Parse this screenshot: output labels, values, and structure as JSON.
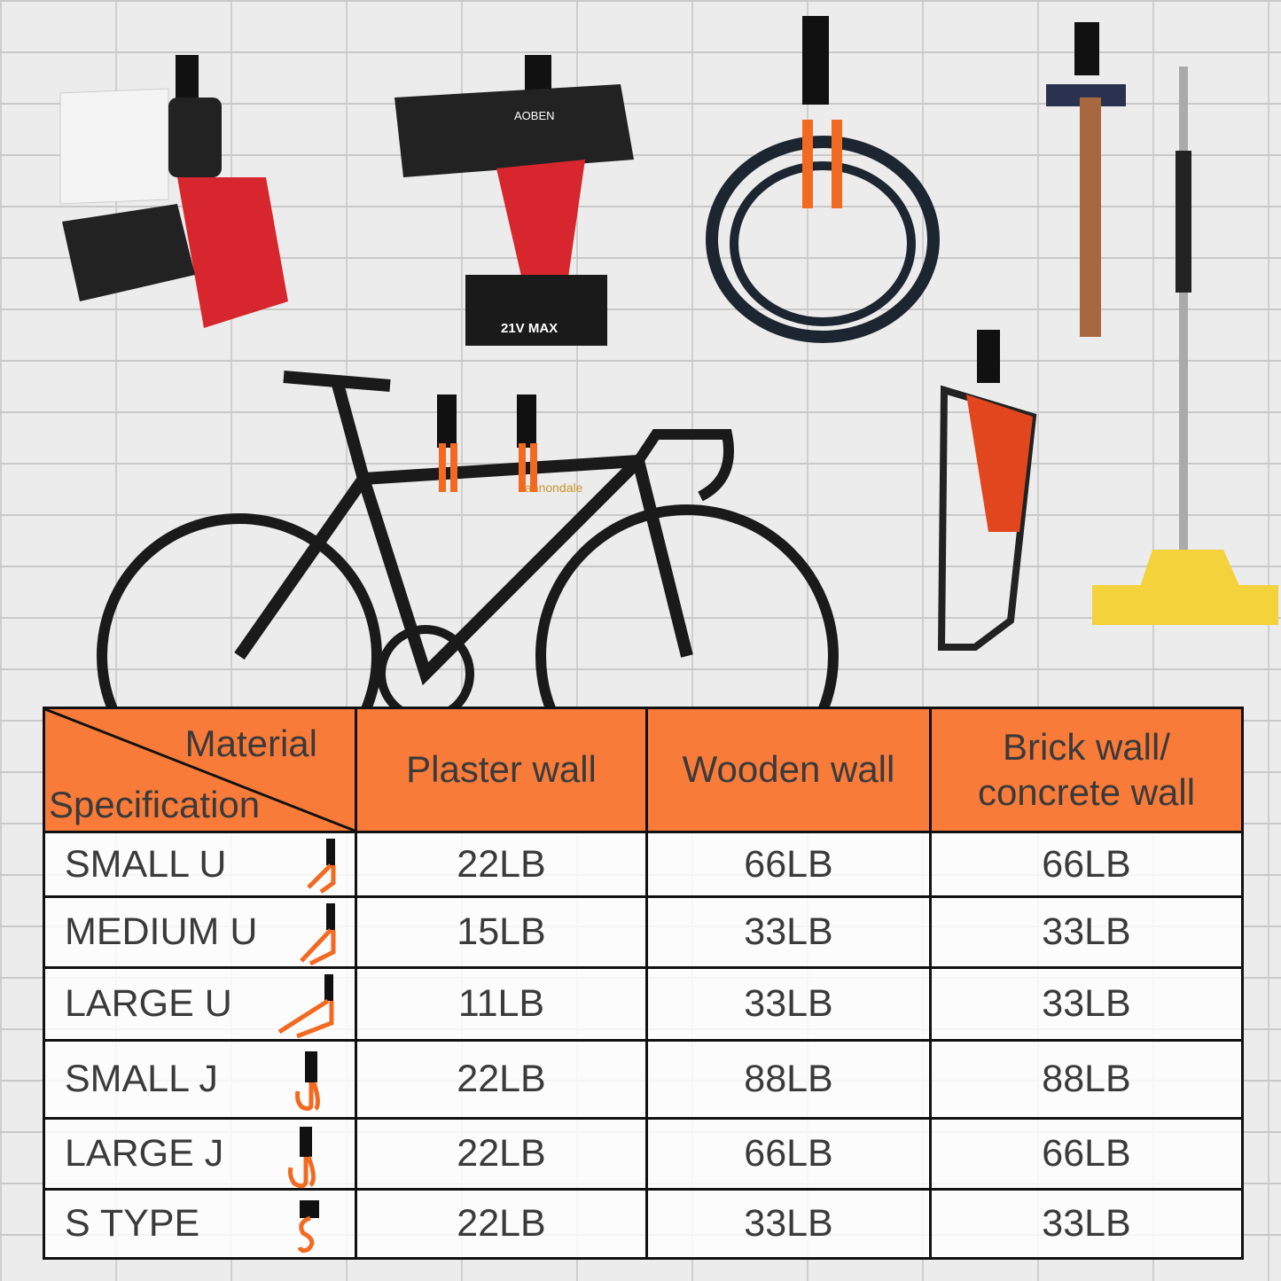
{
  "colors": {
    "header": "#f87b3a",
    "text": "#3a3a3a",
    "border": "#111111",
    "hook": "#f26a21"
  },
  "scene": {
    "drill_brand": "AOBEN",
    "battery_label": "21V MAX",
    "bike_brand": "cannondale"
  },
  "table": {
    "corner": {
      "top": "Material",
      "bottom": "Specification"
    },
    "columns": [
      "Plaster wall",
      "Wooden wall",
      "Brick wall/ concrete wall"
    ],
    "rows": [
      {
        "spec": "SMALL U",
        "hook_icon": "small-u-hook",
        "values": [
          "22LB",
          "66LB",
          "66LB"
        ]
      },
      {
        "spec": "MEDIUM U",
        "hook_icon": "medium-u-hook",
        "values": [
          "15LB",
          "33LB",
          "33LB"
        ]
      },
      {
        "spec": "LARGE U",
        "hook_icon": "large-u-hook",
        "values": [
          "11LB",
          "33LB",
          "33LB"
        ]
      },
      {
        "spec": "SMALL J",
        "hook_icon": "small-j-hook",
        "values": [
          "22LB",
          "88LB",
          "88LB"
        ]
      },
      {
        "spec": "LARGE J",
        "hook_icon": "large-j-hook",
        "values": [
          "22LB",
          "66LB",
          "66LB"
        ]
      },
      {
        "spec": "S TYPE",
        "hook_icon": "s-type-hook",
        "values": [
          "22LB",
          "33LB",
          "33LB"
        ]
      }
    ]
  }
}
